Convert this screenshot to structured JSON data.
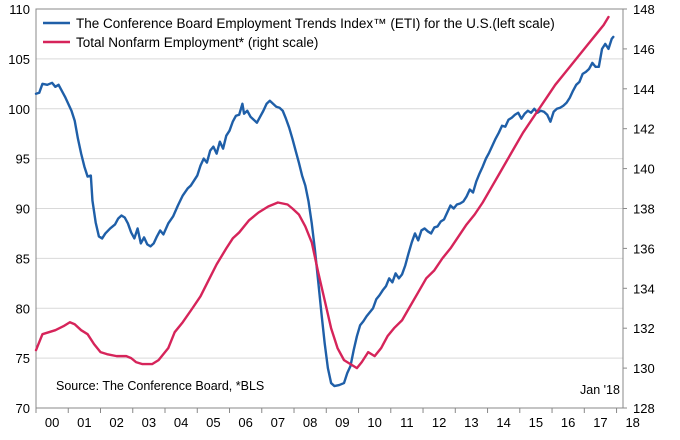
{
  "chart_data": {
    "type": "line",
    "title": "",
    "legend_position": "top-left",
    "source_note": "Source: The Conference Board, *BLS",
    "date_note": "Jan '18",
    "x_axis": {
      "range": [
        2000,
        2018.2
      ],
      "ticks": [
        2000,
        2001,
        2002,
        2003,
        2004,
        2005,
        2006,
        2007,
        2008,
        2009,
        2010,
        2011,
        2012,
        2013,
        2014,
        2015,
        2016,
        2017,
        2018
      ],
      "tick_labels": [
        "00",
        "01",
        "02",
        "03",
        "04",
        "05",
        "06",
        "07",
        "08",
        "09",
        "10",
        "11",
        "12",
        "13",
        "14",
        "15",
        "16",
        "17",
        "18"
      ]
    },
    "y_left": {
      "range": [
        70,
        110
      ],
      "ticks": [
        70,
        75,
        80,
        85,
        90,
        95,
        100,
        105,
        110
      ],
      "tick_labels": [
        "70",
        "75",
        "80",
        "85",
        "90",
        "95",
        "100",
        "105",
        "110"
      ]
    },
    "y_right": {
      "range": [
        128,
        148
      ],
      "ticks": [
        128,
        130,
        132,
        134,
        136,
        138,
        140,
        142,
        144,
        146,
        148
      ],
      "tick_labels": [
        "128",
        "130",
        "132",
        "134",
        "136",
        "138",
        "140",
        "142",
        "144",
        "146",
        "148"
      ]
    },
    "series": [
      {
        "name": "The Conference Board Employment Trends Index™ (ETI) for the U.S.(left scale)",
        "axis": "left",
        "color": "#1f5fa8",
        "points": [
          [
            2000.0,
            101.5
          ],
          [
            2000.1,
            101.6
          ],
          [
            2000.2,
            102.5
          ],
          [
            2000.35,
            102.4
          ],
          [
            2000.5,
            102.6
          ],
          [
            2000.6,
            102.2
          ],
          [
            2000.7,
            102.4
          ],
          [
            2000.8,
            101.8
          ],
          [
            2000.9,
            101.2
          ],
          [
            2001.0,
            100.5
          ],
          [
            2001.1,
            99.8
          ],
          [
            2001.2,
            98.8
          ],
          [
            2001.3,
            97.0
          ],
          [
            2001.4,
            95.5
          ],
          [
            2001.5,
            94.2
          ],
          [
            2001.6,
            93.2
          ],
          [
            2001.7,
            93.3
          ],
          [
            2001.75,
            90.8
          ],
          [
            2001.85,
            88.6
          ],
          [
            2001.95,
            87.2
          ],
          [
            2002.05,
            87.0
          ],
          [
            2002.15,
            87.5
          ],
          [
            2002.3,
            88.0
          ],
          [
            2002.45,
            88.4
          ],
          [
            2002.55,
            89.0
          ],
          [
            2002.65,
            89.3
          ],
          [
            2002.75,
            89.1
          ],
          [
            2002.85,
            88.5
          ],
          [
            2002.95,
            87.6
          ],
          [
            2003.05,
            87.0
          ],
          [
            2003.15,
            88.0
          ],
          [
            2003.25,
            86.5
          ],
          [
            2003.35,
            87.1
          ],
          [
            2003.45,
            86.4
          ],
          [
            2003.55,
            86.2
          ],
          [
            2003.65,
            86.5
          ],
          [
            2003.75,
            87.2
          ],
          [
            2003.85,
            87.8
          ],
          [
            2003.95,
            87.4
          ],
          [
            2004.1,
            88.5
          ],
          [
            2004.25,
            89.2
          ],
          [
            2004.4,
            90.3
          ],
          [
            2004.55,
            91.3
          ],
          [
            2004.7,
            92.0
          ],
          [
            2004.8,
            92.3
          ],
          [
            2004.9,
            92.8
          ],
          [
            2005.0,
            93.3
          ],
          [
            2005.1,
            94.3
          ],
          [
            2005.2,
            95.0
          ],
          [
            2005.3,
            94.6
          ],
          [
            2005.4,
            95.8
          ],
          [
            2005.5,
            96.2
          ],
          [
            2005.6,
            95.5
          ],
          [
            2005.7,
            96.7
          ],
          [
            2005.8,
            96.0
          ],
          [
            2005.9,
            97.3
          ],
          [
            2006.0,
            97.8
          ],
          [
            2006.1,
            98.7
          ],
          [
            2006.2,
            99.3
          ],
          [
            2006.3,
            99.4
          ],
          [
            2006.4,
            100.5
          ],
          [
            2006.45,
            99.5
          ],
          [
            2006.55,
            99.8
          ],
          [
            2006.65,
            99.2
          ],
          [
            2006.75,
            98.9
          ],
          [
            2006.85,
            98.6
          ],
          [
            2006.95,
            99.2
          ],
          [
            2007.05,
            99.8
          ],
          [
            2007.15,
            100.5
          ],
          [
            2007.25,
            100.8
          ],
          [
            2007.35,
            100.5
          ],
          [
            2007.45,
            100.2
          ],
          [
            2007.55,
            100.1
          ],
          [
            2007.65,
            99.8
          ],
          [
            2007.75,
            99.0
          ],
          [
            2007.85,
            98.1
          ],
          [
            2007.95,
            97.0
          ],
          [
            2008.05,
            95.8
          ],
          [
            2008.15,
            94.6
          ],
          [
            2008.25,
            93.3
          ],
          [
            2008.35,
            92.3
          ],
          [
            2008.45,
            90.7
          ],
          [
            2008.55,
            88.5
          ],
          [
            2008.65,
            85.8
          ],
          [
            2008.75,
            82.7
          ],
          [
            2008.85,
            79.5
          ],
          [
            2008.95,
            76.5
          ],
          [
            2009.05,
            74.0
          ],
          [
            2009.15,
            72.5
          ],
          [
            2009.25,
            72.2
          ],
          [
            2009.4,
            72.3
          ],
          [
            2009.55,
            72.5
          ],
          [
            2009.65,
            73.5
          ],
          [
            2009.75,
            74.2
          ],
          [
            2009.85,
            75.8
          ],
          [
            2009.95,
            77.2
          ],
          [
            2010.05,
            78.3
          ],
          [
            2010.15,
            78.7
          ],
          [
            2010.25,
            79.2
          ],
          [
            2010.35,
            79.6
          ],
          [
            2010.45,
            80.0
          ],
          [
            2010.55,
            80.9
          ],
          [
            2010.65,
            81.3
          ],
          [
            2010.75,
            81.8
          ],
          [
            2010.85,
            82.2
          ],
          [
            2010.95,
            83.0
          ],
          [
            2011.05,
            82.6
          ],
          [
            2011.15,
            83.5
          ],
          [
            2011.25,
            83.0
          ],
          [
            2011.35,
            83.4
          ],
          [
            2011.45,
            84.3
          ],
          [
            2011.55,
            85.5
          ],
          [
            2011.65,
            86.6
          ],
          [
            2011.75,
            87.5
          ],
          [
            2011.85,
            86.8
          ],
          [
            2011.95,
            87.8
          ],
          [
            2012.05,
            88.0
          ],
          [
            2012.15,
            87.7
          ],
          [
            2012.25,
            87.5
          ],
          [
            2012.35,
            88.1
          ],
          [
            2012.45,
            88.2
          ],
          [
            2012.55,
            88.7
          ],
          [
            2012.65,
            88.9
          ],
          [
            2012.75,
            89.6
          ],
          [
            2012.85,
            90.3
          ],
          [
            2012.95,
            90.0
          ],
          [
            2013.05,
            90.4
          ],
          [
            2013.15,
            90.5
          ],
          [
            2013.25,
            90.7
          ],
          [
            2013.35,
            91.2
          ],
          [
            2013.45,
            91.9
          ],
          [
            2013.55,
            91.6
          ],
          [
            2013.65,
            92.7
          ],
          [
            2013.75,
            93.5
          ],
          [
            2013.85,
            94.2
          ],
          [
            2013.95,
            95.0
          ],
          [
            2014.05,
            95.6
          ],
          [
            2014.15,
            96.3
          ],
          [
            2014.25,
            97.0
          ],
          [
            2014.35,
            97.6
          ],
          [
            2014.45,
            98.3
          ],
          [
            2014.55,
            98.2
          ],
          [
            2014.65,
            98.9
          ],
          [
            2014.75,
            99.1
          ],
          [
            2014.85,
            99.4
          ],
          [
            2014.95,
            99.6
          ],
          [
            2015.05,
            99.0
          ],
          [
            2015.15,
            99.5
          ],
          [
            2015.25,
            99.8
          ],
          [
            2015.35,
            99.6
          ],
          [
            2015.45,
            100.0
          ],
          [
            2015.55,
            99.6
          ],
          [
            2015.65,
            99.8
          ],
          [
            2015.75,
            99.7
          ],
          [
            2015.85,
            99.4
          ],
          [
            2015.95,
            98.7
          ],
          [
            2016.05,
            99.7
          ],
          [
            2016.15,
            100.0
          ],
          [
            2016.25,
            100.1
          ],
          [
            2016.35,
            100.3
          ],
          [
            2016.45,
            100.6
          ],
          [
            2016.55,
            101.1
          ],
          [
            2016.65,
            101.8
          ],
          [
            2016.75,
            102.4
          ],
          [
            2016.85,
            102.7
          ],
          [
            2016.95,
            103.5
          ],
          [
            2017.05,
            103.7
          ],
          [
            2017.15,
            104.0
          ],
          [
            2017.25,
            104.6
          ],
          [
            2017.35,
            104.2
          ],
          [
            2017.45,
            104.2
          ],
          [
            2017.55,
            106.0
          ],
          [
            2017.65,
            106.5
          ],
          [
            2017.75,
            106.0
          ],
          [
            2017.85,
            107.0
          ],
          [
            2017.9,
            107.2
          ]
        ]
      },
      {
        "name": "Total Nonfarm Employment* (right scale)",
        "axis": "right",
        "color": "#d6245a",
        "points": [
          [
            2000.0,
            130.9
          ],
          [
            2000.2,
            131.7
          ],
          [
            2000.4,
            131.8
          ],
          [
            2000.6,
            131.9
          ],
          [
            2000.85,
            132.1
          ],
          [
            2001.05,
            132.3
          ],
          [
            2001.2,
            132.2
          ],
          [
            2001.4,
            131.9
          ],
          [
            2001.6,
            131.7
          ],
          [
            2001.8,
            131.2
          ],
          [
            2002.0,
            130.8
          ],
          [
            2002.2,
            130.7
          ],
          [
            2002.5,
            130.6
          ],
          [
            2002.8,
            130.6
          ],
          [
            2002.95,
            130.5
          ],
          [
            2003.1,
            130.3
          ],
          [
            2003.3,
            130.2
          ],
          [
            2003.6,
            130.2
          ],
          [
            2003.8,
            130.4
          ],
          [
            2004.1,
            131.0
          ],
          [
            2004.3,
            131.8
          ],
          [
            2004.55,
            132.3
          ],
          [
            2004.85,
            133.0
          ],
          [
            2005.1,
            133.6
          ],
          [
            2005.35,
            134.4
          ],
          [
            2005.6,
            135.2
          ],
          [
            2005.9,
            136.0
          ],
          [
            2006.1,
            136.5
          ],
          [
            2006.3,
            136.8
          ],
          [
            2006.6,
            137.4
          ],
          [
            2006.9,
            137.8
          ],
          [
            2007.2,
            138.1
          ],
          [
            2007.5,
            138.3
          ],
          [
            2007.8,
            138.2
          ],
          [
            2007.95,
            138.0
          ],
          [
            2008.15,
            137.7
          ],
          [
            2008.35,
            137.1
          ],
          [
            2008.55,
            136.3
          ],
          [
            2008.75,
            134.8
          ],
          [
            2008.95,
            133.4
          ],
          [
            2009.15,
            132.0
          ],
          [
            2009.35,
            131.0
          ],
          [
            2009.55,
            130.4
          ],
          [
            2009.75,
            130.2
          ],
          [
            2009.95,
            130.0
          ],
          [
            2010.1,
            130.3
          ],
          [
            2010.3,
            130.8
          ],
          [
            2010.5,
            130.6
          ],
          [
            2010.7,
            131.0
          ],
          [
            2010.9,
            131.6
          ],
          [
            2011.1,
            132.0
          ],
          [
            2011.35,
            132.4
          ],
          [
            2011.6,
            133.1
          ],
          [
            2011.85,
            133.8
          ],
          [
            2012.1,
            134.5
          ],
          [
            2012.35,
            134.9
          ],
          [
            2012.6,
            135.5
          ],
          [
            2012.85,
            136.0
          ],
          [
            2013.1,
            136.6
          ],
          [
            2013.35,
            137.2
          ],
          [
            2013.6,
            137.7
          ],
          [
            2013.85,
            138.3
          ],
          [
            2014.1,
            139.0
          ],
          [
            2014.35,
            139.7
          ],
          [
            2014.6,
            140.4
          ],
          [
            2014.85,
            141.1
          ],
          [
            2015.1,
            141.8
          ],
          [
            2015.35,
            142.4
          ],
          [
            2015.6,
            143.0
          ],
          [
            2015.85,
            143.6
          ],
          [
            2016.1,
            144.2
          ],
          [
            2016.35,
            144.7
          ],
          [
            2016.6,
            145.2
          ],
          [
            2016.85,
            145.7
          ],
          [
            2017.1,
            146.2
          ],
          [
            2017.35,
            146.7
          ],
          [
            2017.6,
            147.2
          ],
          [
            2017.75,
            147.6
          ]
        ]
      }
    ]
  }
}
